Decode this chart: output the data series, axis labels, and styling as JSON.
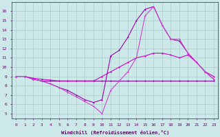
{
  "bg_color": "#cce8e8",
  "grid_color": "#aacccc",
  "line_color1": "#7700aa",
  "line_color2": "#cc00cc",
  "line_color3": "#9900aa",
  "line_color4": "#cc44cc",
  "xlim": [
    -0.5,
    23.5
  ],
  "ylim": [
    4.5,
    17.0
  ],
  "xlabel": "Windchill (Refroidissement éolien,°C)",
  "xticks": [
    0,
    1,
    2,
    3,
    4,
    5,
    6,
    7,
    8,
    9,
    10,
    11,
    12,
    13,
    14,
    15,
    16,
    17,
    18,
    19,
    20,
    21,
    22,
    23
  ],
  "yticks": [
    5,
    6,
    7,
    8,
    9,
    10,
    11,
    12,
    13,
    14,
    15,
    16
  ],
  "line1_x": [
    0,
    1,
    2,
    3,
    4,
    5,
    6,
    7,
    8,
    9,
    10,
    11,
    12,
    13,
    14,
    15,
    16,
    17,
    18,
    19,
    20,
    21,
    22,
    23
  ],
  "line1_y": [
    9.0,
    9.0,
    8.7,
    8.5,
    8.5,
    8.5,
    8.5,
    8.5,
    8.5,
    8.5,
    8.5,
    8.5,
    8.5,
    8.5,
    8.5,
    8.5,
    8.5,
    8.5,
    8.5,
    8.5,
    8.5,
    8.5,
    8.5,
    8.5
  ],
  "line2_x": [
    0,
    1,
    2,
    3,
    4,
    5,
    6,
    7,
    8,
    9,
    10,
    11,
    12,
    13,
    14,
    15,
    16,
    17,
    18,
    19,
    20,
    21,
    22,
    23
  ],
  "line2_y": [
    9.0,
    9.0,
    8.8,
    8.7,
    8.6,
    8.5,
    8.5,
    8.5,
    8.5,
    8.5,
    9.0,
    9.5,
    10.0,
    10.5,
    11.0,
    11.2,
    11.5,
    11.5,
    11.3,
    11.0,
    11.3,
    10.5,
    9.5,
    9.0
  ],
  "line3_x": [
    0,
    1,
    2,
    3,
    4,
    5,
    6,
    7,
    8,
    9,
    10,
    11,
    12,
    13,
    14,
    15,
    16,
    17,
    18,
    19,
    20,
    21,
    22,
    23
  ],
  "line3_y": [
    9.0,
    9.0,
    8.7,
    8.5,
    8.2,
    7.8,
    7.5,
    7.0,
    6.5,
    6.2,
    6.5,
    11.2,
    11.8,
    13.2,
    15.0,
    16.2,
    16.5,
    14.5,
    13.0,
    12.8,
    11.5,
    10.5,
    9.5,
    8.7
  ],
  "line4_x": [
    0,
    1,
    2,
    3,
    4,
    5,
    6,
    7,
    8,
    9,
    10,
    11,
    12,
    13,
    14,
    15,
    16,
    17,
    18,
    19,
    20,
    21,
    22,
    23
  ],
  "line4_y": [
    9.0,
    9.0,
    8.7,
    8.5,
    8.2,
    7.8,
    7.3,
    6.8,
    6.3,
    5.8,
    5.0,
    7.5,
    8.5,
    9.5,
    11.0,
    15.5,
    16.5,
    14.5,
    13.0,
    13.0,
    11.5,
    10.5,
    9.5,
    8.7
  ],
  "tick_color": "#660066",
  "xlabel_color": "#660066"
}
